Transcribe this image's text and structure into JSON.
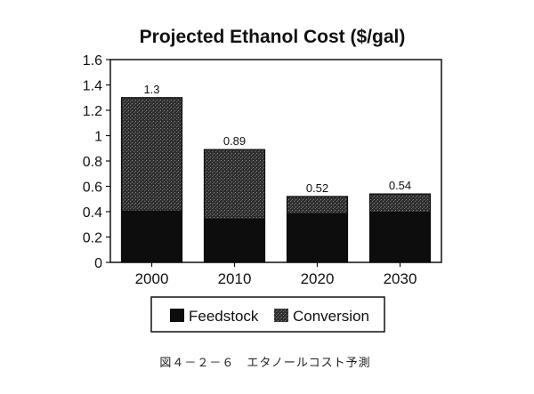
{
  "chart_data": {
    "type": "bar",
    "stacked": true,
    "title": "Projected Ethanol Cost ($/gal)",
    "xlabel": "",
    "ylabel": "",
    "categories": [
      "2000",
      "2010",
      "2020",
      "2030"
    ],
    "series": [
      {
        "name": "Feedstock",
        "values": [
          0.41,
          0.35,
          0.39,
          0.4
        ],
        "color": "#0d0d0d"
      },
      {
        "name": "Conversion",
        "values": [
          0.89,
          0.54,
          0.13,
          0.14
        ],
        "color": "#3a3a3a"
      }
    ],
    "totals": [
      1.3,
      0.89,
      0.52,
      0.54
    ],
    "total_labels": [
      "1.3",
      "0.89",
      "0.52",
      "0.54"
    ],
    "ylim": [
      0,
      1.6
    ],
    "yticks": [
      0,
      0.2,
      0.4,
      0.6,
      0.8,
      1,
      1.2,
      1.4,
      1.6
    ],
    "ytick_labels": [
      "0",
      "0.2",
      "0.4",
      "0.6",
      "0.8",
      "1",
      "1.2",
      "1.4",
      "1.6"
    ],
    "grid": false,
    "legend_position": "bottom"
  },
  "caption": "図４－２－６　エタノールコスト予測"
}
